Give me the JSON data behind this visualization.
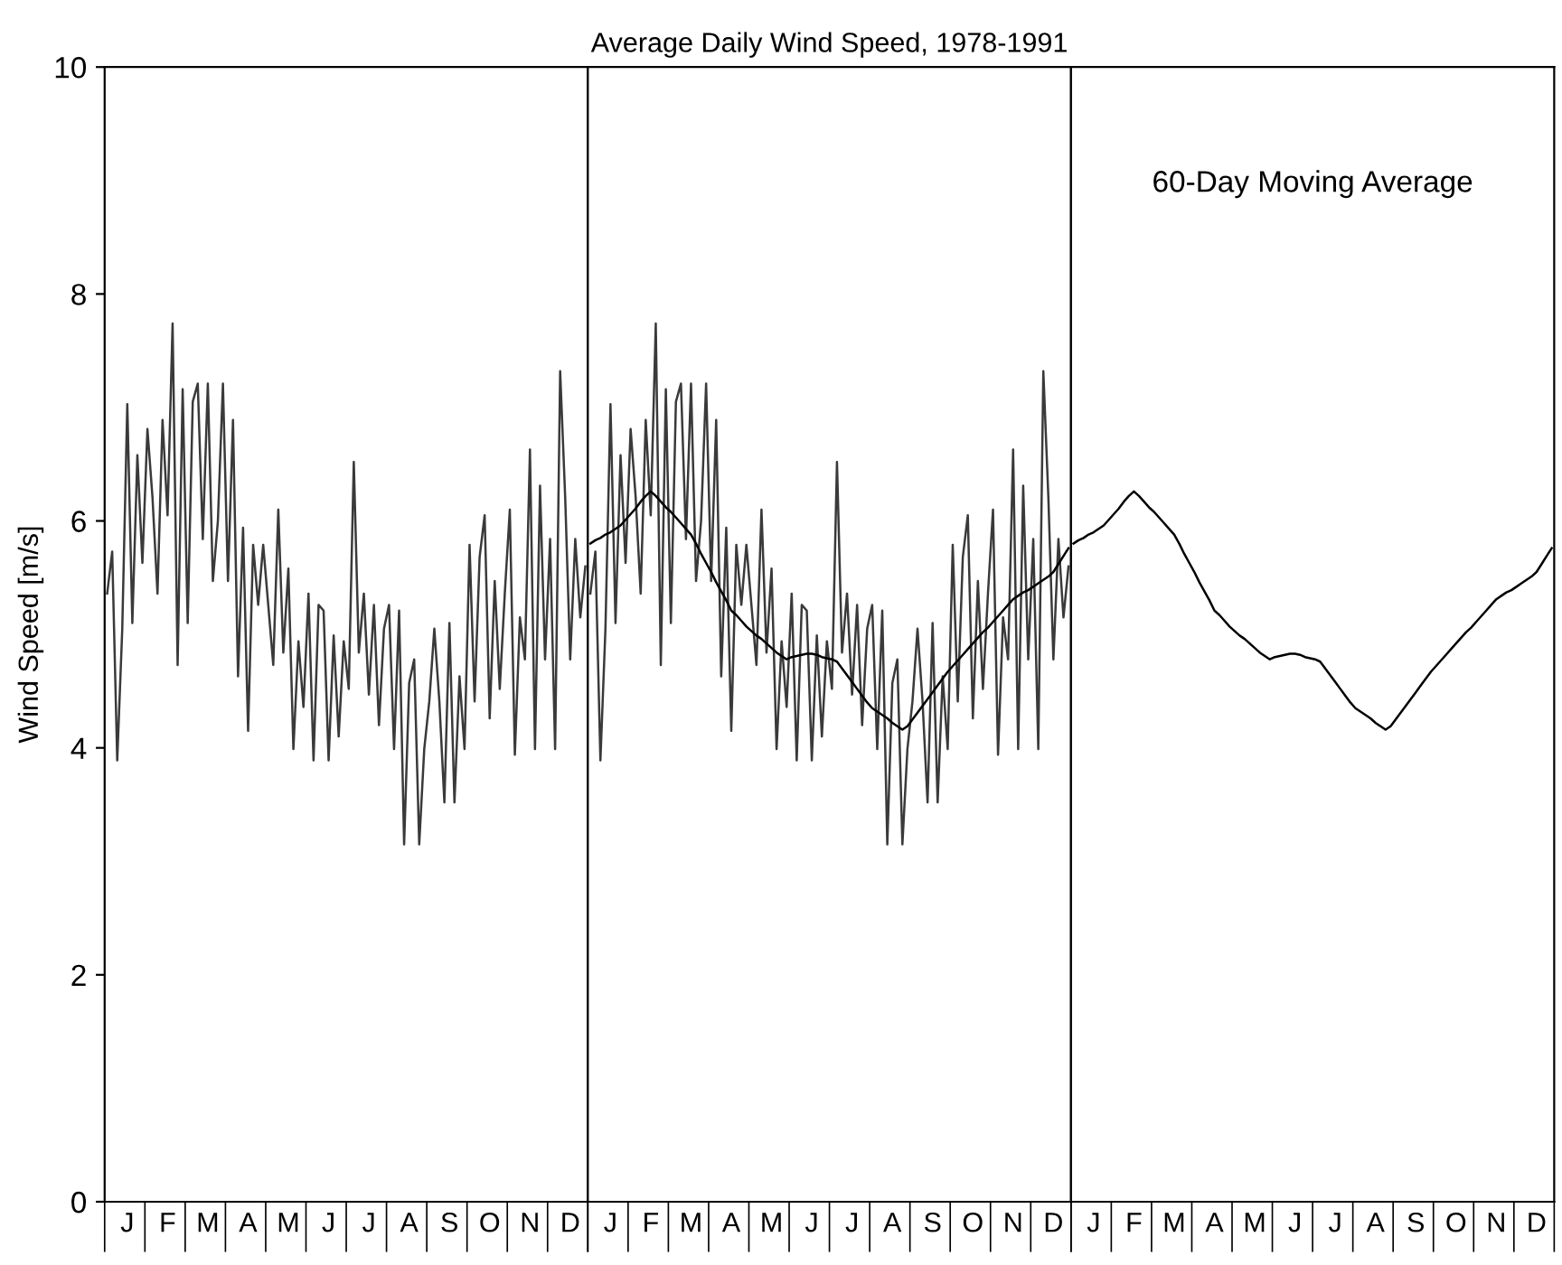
{
  "chart_data": [
    {
      "type": "line",
      "ylabel": "Wind Speed [m/s]",
      "ylim": [
        0,
        10
      ],
      "yticks": [
        0,
        2,
        4,
        6,
        8,
        10
      ],
      "categories": [
        null,
        null,
        null,
        null,
        "J",
        null,
        null,
        null,
        null,
        null,
        null,
        null,
        "F",
        null,
        null,
        null,
        null,
        null,
        null,
        null,
        "M",
        null,
        null,
        null,
        null,
        null,
        null,
        null,
        "A",
        null,
        null,
        null,
        null,
        null,
        null,
        null,
        "M",
        null,
        null,
        null,
        null,
        null,
        null,
        null,
        "J",
        null,
        null,
        null,
        null,
        null,
        null,
        null,
        "J",
        null,
        null,
        null,
        null,
        null,
        null,
        null,
        "A",
        null,
        null,
        null,
        null,
        null,
        null,
        null,
        "S",
        null,
        null,
        null,
        null,
        null,
        null,
        null,
        "O",
        null,
        null,
        null,
        null,
        null,
        null,
        null,
        "N",
        null,
        null,
        null,
        null,
        null,
        null,
        null,
        "D",
        null,
        null,
        null
      ],
      "grid": false,
      "legend": false,
      "marker": "none",
      "line_style": "solid",
      "series": [
        {
          "color": "#3a3a3a",
          "values": [
            5.36,
            5.73,
            3.89,
            5.05,
            7.03,
            5.1,
            6.58,
            5.63,
            6.81,
            6.21,
            5.36,
            6.89,
            6.05,
            7.74,
            4.73,
            7.16,
            5.1,
            7.05,
            7.21,
            5.84,
            7.21,
            5.47,
            6.0,
            7.21,
            5.47,
            6.89,
            4.63,
            5.94,
            4.15,
            5.79,
            5.26,
            5.79,
            5.26,
            4.73,
            6.1,
            4.84,
            5.58,
            3.99,
            4.94,
            4.36,
            5.36,
            3.89,
            5.26,
            5.21,
            3.89,
            4.99,
            4.1,
            4.94,
            4.52,
            6.52,
            4.84,
            5.36,
            4.47,
            5.26,
            4.2,
            5.05,
            5.26,
            3.99,
            5.21,
            3.15,
            4.57,
            4.78,
            3.15,
            3.99,
            4.41,
            5.05,
            4.41,
            3.52,
            5.1,
            3.52,
            4.63,
            3.99,
            5.79,
            4.41,
            5.68,
            6.05,
            4.26,
            5.47,
            4.52,
            5.36,
            6.1,
            3.94,
            5.15,
            4.78,
            6.63,
            3.99,
            6.31,
            4.78,
            5.84,
            3.99,
            7.32,
            6.21,
            4.78,
            5.84,
            5.15,
            5.6
          ]
        }
      ]
    },
    {
      "type": "line",
      "title": "Average Daily Wind Speed, 1978-1991",
      "ylim": [
        0,
        10
      ],
      "categories": [
        null,
        null,
        null,
        null,
        "J",
        null,
        null,
        null,
        null,
        null,
        null,
        null,
        "F",
        null,
        null,
        null,
        null,
        null,
        null,
        null,
        "M",
        null,
        null,
        null,
        null,
        null,
        null,
        null,
        "A",
        null,
        null,
        null,
        null,
        null,
        null,
        null,
        "M",
        null,
        null,
        null,
        null,
        null,
        null,
        null,
        "J",
        null,
        null,
        null,
        null,
        null,
        null,
        null,
        "J",
        null,
        null,
        null,
        null,
        null,
        null,
        null,
        "A",
        null,
        null,
        null,
        null,
        null,
        null,
        null,
        "S",
        null,
        null,
        null,
        null,
        null,
        null,
        null,
        "O",
        null,
        null,
        null,
        null,
        null,
        null,
        null,
        "N",
        null,
        null,
        null,
        null,
        null,
        null,
        null,
        "D",
        null,
        null,
        null
      ],
      "tick_labels": "x",
      "grid": false,
      "legend": false,
      "marker": "none",
      "line_style": "solid",
      "series": [
        {
          "color": "#3a3a3a",
          "values": [
            5.36,
            5.73,
            3.89,
            5.05,
            7.03,
            5.1,
            6.58,
            5.63,
            6.81,
            6.21,
            5.36,
            6.89,
            6.05,
            7.74,
            4.73,
            7.16,
            5.1,
            7.05,
            7.21,
            5.84,
            7.21,
            5.47,
            6.0,
            7.21,
            5.47,
            6.89,
            4.63,
            5.94,
            4.15,
            5.79,
            5.26,
            5.79,
            5.26,
            4.73,
            6.1,
            4.84,
            5.58,
            3.99,
            4.94,
            4.36,
            5.36,
            3.89,
            5.26,
            5.21,
            3.89,
            4.99,
            4.1,
            4.94,
            4.52,
            6.52,
            4.84,
            5.36,
            4.47,
            5.26,
            4.2,
            5.05,
            5.26,
            3.99,
            5.21,
            3.15,
            4.57,
            4.78,
            3.15,
            3.99,
            4.41,
            5.05,
            4.41,
            3.52,
            5.1,
            3.52,
            4.63,
            3.99,
            5.79,
            4.41,
            5.68,
            6.05,
            4.26,
            5.47,
            4.52,
            5.36,
            6.1,
            3.94,
            5.15,
            4.78,
            6.63,
            3.99,
            6.31,
            4.78,
            5.84,
            3.99,
            7.32,
            6.21,
            4.78,
            5.84,
            5.15,
            5.6
          ]
        },
        {
          "color": "#000000",
          "values": [
            5.8,
            5.83,
            5.85,
            5.88,
            5.9,
            5.93,
            5.96,
            6.01,
            6.06,
            6.11,
            6.17,
            6.22,
            6.26,
            6.22,
            6.17,
            6.12,
            6.08,
            6.03,
            5.98,
            5.93,
            5.88,
            5.8,
            5.71,
            5.63,
            5.55,
            5.46,
            5.38,
            5.3,
            5.21,
            5.17,
            5.12,
            5.07,
            5.03,
            4.99,
            4.96,
            4.92,
            4.88,
            4.84,
            4.81,
            4.78,
            4.8,
            4.81,
            4.82,
            4.83,
            4.83,
            4.82,
            4.8,
            4.79,
            4.78,
            4.76,
            4.7,
            4.64,
            4.58,
            4.52,
            4.46,
            4.4,
            4.35,
            4.32,
            4.29,
            4.26,
            4.22,
            4.19,
            4.16,
            4.19,
            4.25,
            4.31,
            4.37,
            4.43,
            4.49,
            4.55,
            4.61,
            4.67,
            4.72,
            4.77,
            4.82,
            4.87,
            4.92,
            4.97,
            5.02,
            5.06,
            5.11,
            5.16,
            5.21,
            5.26,
            5.31,
            5.34,
            5.37,
            5.39,
            5.42,
            5.45,
            5.48,
            5.51,
            5.55,
            5.62,
            5.69,
            5.76
          ]
        }
      ]
    },
    {
      "type": "line",
      "annotations": [
        "60-Day Moving Average"
      ],
      "ylim": [
        0,
        10
      ],
      "categories": [
        null,
        null,
        null,
        null,
        "J",
        null,
        null,
        null,
        null,
        null,
        null,
        null,
        "F",
        null,
        null,
        null,
        null,
        null,
        null,
        null,
        "M",
        null,
        null,
        null,
        null,
        null,
        null,
        null,
        "A",
        null,
        null,
        null,
        null,
        null,
        null,
        null,
        "M",
        null,
        null,
        null,
        null,
        null,
        null,
        null,
        "J",
        null,
        null,
        null,
        null,
        null,
        null,
        null,
        "J",
        null,
        null,
        null,
        null,
        null,
        null,
        null,
        "A",
        null,
        null,
        null,
        null,
        null,
        null,
        null,
        "S",
        null,
        null,
        null,
        null,
        null,
        null,
        null,
        "O",
        null,
        null,
        null,
        null,
        null,
        null,
        null,
        "N",
        null,
        null,
        null,
        null,
        null,
        null,
        null,
        "D",
        null,
        null,
        null
      ],
      "tick_labels": "x",
      "grid": false,
      "legend": false,
      "marker": "none",
      "line_style": "solid",
      "series": [
        {
          "color": "#000000",
          "values": [
            5.8,
            5.83,
            5.85,
            5.88,
            5.9,
            5.93,
            5.96,
            6.01,
            6.06,
            6.11,
            6.17,
            6.22,
            6.26,
            6.22,
            6.17,
            6.12,
            6.08,
            6.03,
            5.98,
            5.93,
            5.88,
            5.8,
            5.71,
            5.63,
            5.55,
            5.46,
            5.38,
            5.3,
            5.21,
            5.17,
            5.12,
            5.07,
            5.03,
            4.99,
            4.96,
            4.92,
            4.88,
            4.84,
            4.81,
            4.78,
            4.8,
            4.81,
            4.82,
            4.83,
            4.83,
            4.82,
            4.8,
            4.79,
            4.78,
            4.76,
            4.7,
            4.64,
            4.58,
            4.52,
            4.46,
            4.4,
            4.35,
            4.32,
            4.29,
            4.26,
            4.22,
            4.19,
            4.16,
            4.19,
            4.25,
            4.31,
            4.37,
            4.43,
            4.49,
            4.55,
            4.61,
            4.67,
            4.72,
            4.77,
            4.82,
            4.87,
            4.92,
            4.97,
            5.02,
            5.06,
            5.11,
            5.16,
            5.21,
            5.26,
            5.31,
            5.34,
            5.37,
            5.39,
            5.42,
            5.45,
            5.48,
            5.51,
            5.55,
            5.62,
            5.69,
            5.76
          ]
        }
      ]
    }
  ]
}
